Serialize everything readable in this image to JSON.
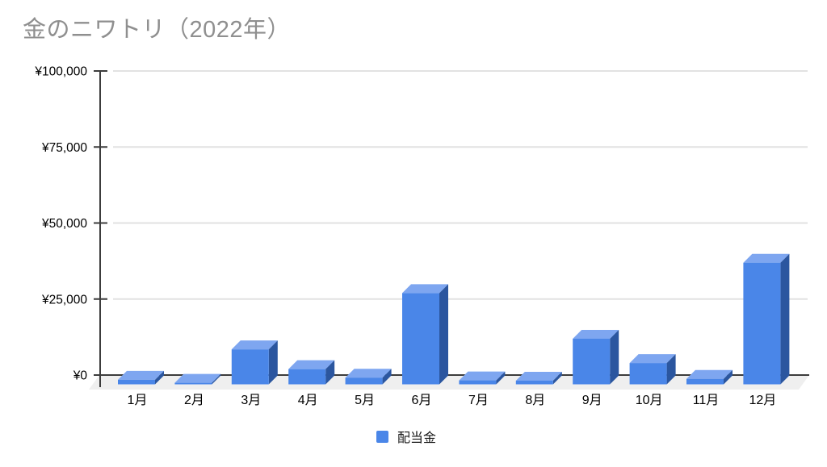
{
  "chart_data": {
    "type": "bar",
    "style": "3d-column",
    "title": "金のニワトリ（2022年）",
    "categories": [
      "1月",
      "2月",
      "3月",
      "4月",
      "5月",
      "6月",
      "7月",
      "8月",
      "9月",
      "10月",
      "11月",
      "12月"
    ],
    "series": [
      {
        "name": "配当金",
        "values": [
          1500,
          500,
          11500,
          5000,
          2200,
          30000,
          1300,
          1200,
          15000,
          7000,
          1800,
          40000
        ]
      }
    ],
    "xlabel": "",
    "ylabel": "",
    "ylim": [
      0,
      100000
    ],
    "grid": true,
    "legend": {
      "position": "bottom",
      "label": "配当金"
    },
    "y_ticks": [
      {
        "value": 100000,
        "label": "¥100,000"
      },
      {
        "value": 75000,
        "label": "¥75,000"
      },
      {
        "value": 50000,
        "label": "¥50,000"
      },
      {
        "value": 25000,
        "label": "¥25,000"
      },
      {
        "value": 0,
        "label": "¥0"
      }
    ],
    "colors": {
      "bar_front": "#4a86e8",
      "bar_top": "#7ea6f0",
      "bar_side": "#2b569f",
      "legend_swatch": "#4a86e8",
      "grid_line": "#e2e2e2",
      "axis_line": "#3c3c3c",
      "floor": "#efefef",
      "title_text": "#8f8f8f",
      "tick_text": "#000000",
      "background": "#ffffff"
    }
  }
}
